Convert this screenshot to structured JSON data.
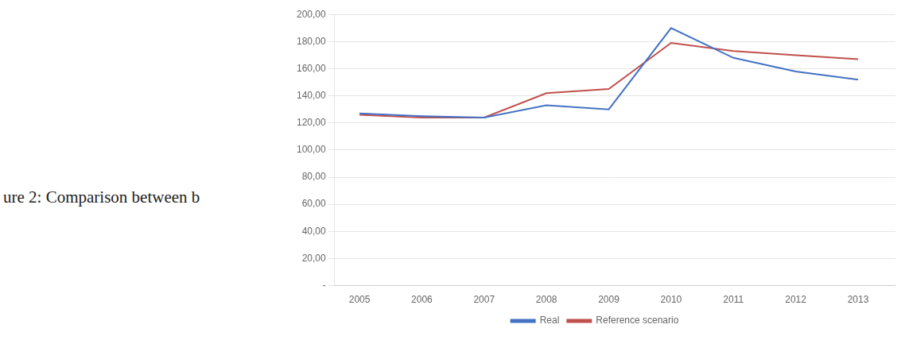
{
  "chart_data": {
    "type": "line",
    "x": [
      2005,
      2006,
      2007,
      2008,
      2009,
      2010,
      2011,
      2012,
      2013
    ],
    "series": [
      {
        "name": "Real",
        "color": "#4472C4",
        "values": [
          127,
          125,
          124,
          133,
          130,
          190,
          168,
          158,
          152
        ]
      },
      {
        "name": "Reference scenario",
        "color": "#C0504D",
        "values": [
          126,
          124,
          124,
          142,
          145,
          179,
          173,
          170,
          167
        ]
      }
    ],
    "xlim": [
      2004.6,
      2013.6
    ],
    "xticks": [
      2005,
      2006,
      2007,
      2008,
      2009,
      2010,
      2011,
      2012,
      2013
    ],
    "ylim": [
      0,
      200
    ],
    "yticks": [
      {
        "value": 0,
        "label": "-"
      },
      {
        "value": 20,
        "label": "20,00"
      },
      {
        "value": 40,
        "label": "40,00"
      },
      {
        "value": 60,
        "label": "60,00"
      },
      {
        "value": 80,
        "label": "80,00"
      },
      {
        "value": 100,
        "label": "100,00"
      },
      {
        "value": 120,
        "label": "120,00"
      },
      {
        "value": 140,
        "label": "140,00"
      },
      {
        "value": 160,
        "label": "160,00"
      },
      {
        "value": 180,
        "label": "180,00"
      },
      {
        "value": 200,
        "label": "200,00"
      }
    ],
    "grid": "y",
    "legend": "bottom",
    "annotations": [
      "ure 2: Comparison between b"
    ]
  }
}
